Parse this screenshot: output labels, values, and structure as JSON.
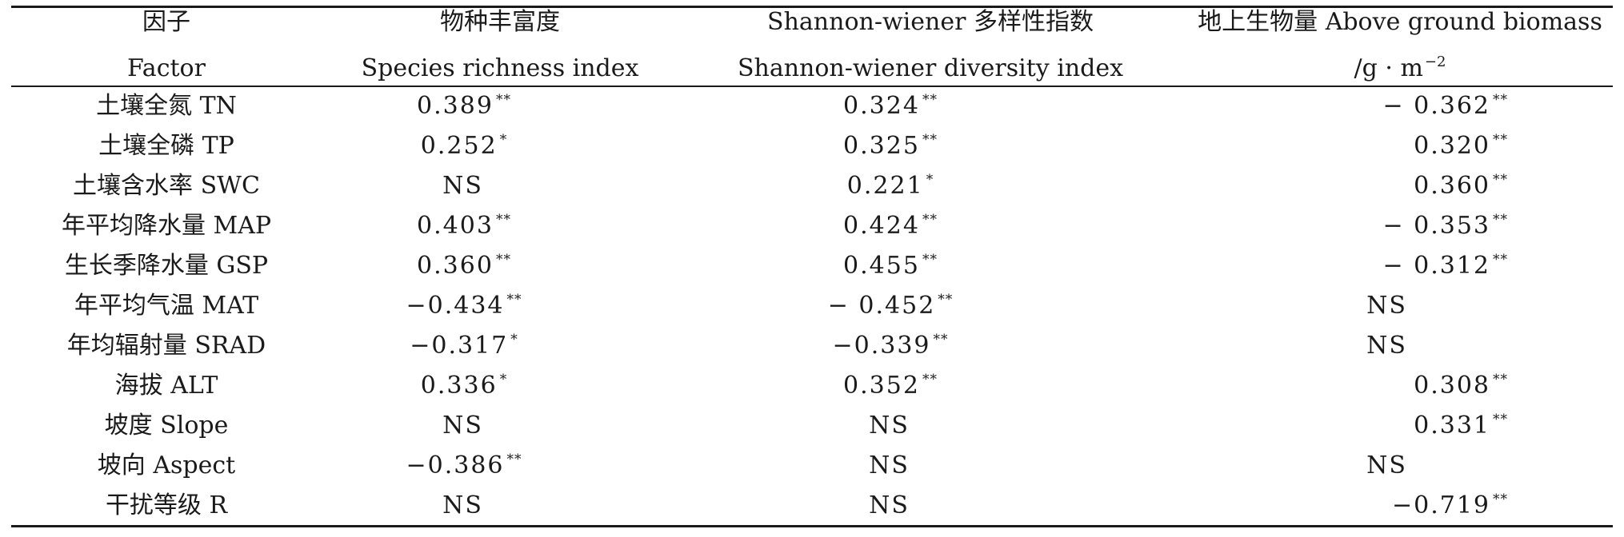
{
  "header": {
    "col1": {
      "line1": "因子",
      "line2": "Factor"
    },
    "col2": {
      "line1": "物种丰富度",
      "line2": "Species richness index"
    },
    "col3": {
      "line1": "Shannon-wiener 多样性指数",
      "line2": "Shannon-wiener diversity index"
    },
    "col4": {
      "line1": "地上生物量 Above ground biomass",
      "line2": "/g · m",
      "line2_sup": "−2"
    }
  },
  "rows": [
    {
      "factor": "土壤全氮 TN",
      "richness": {
        "v": "0.389",
        "s": "**"
      },
      "shannon": {
        "v": "0.324",
        "s": "**"
      },
      "biomass": {
        "v": "− 0.362",
        "s": "**"
      }
    },
    {
      "factor": "土壤全磷 TP",
      "richness": {
        "v": "0.252",
        "s": "*"
      },
      "shannon": {
        "v": "0.325",
        "s": "**"
      },
      "biomass": {
        "v": "0.320",
        "s": "**"
      }
    },
    {
      "factor": "土壤含水率 SWC",
      "richness": {
        "v": "NS",
        "s": ""
      },
      "shannon": {
        "v": "0.221",
        "s": "*"
      },
      "biomass": {
        "v": "0.360",
        "s": "**"
      }
    },
    {
      "factor": "年平均降水量 MAP",
      "richness": {
        "v": "0.403",
        "s": "**"
      },
      "shannon": {
        "v": "0.424",
        "s": "**"
      },
      "biomass": {
        "v": "− 0.353",
        "s": "**"
      }
    },
    {
      "factor": "生长季降水量 GSP",
      "richness": {
        "v": "0.360",
        "s": "**"
      },
      "shannon": {
        "v": "0.455",
        "s": "**"
      },
      "biomass": {
        "v": "− 0.312",
        "s": "**"
      }
    },
    {
      "factor": "年平均气温 MAT",
      "richness": {
        "v": "−0.434",
        "s": "**"
      },
      "shannon": {
        "v": "− 0.452",
        "s": "**"
      },
      "biomass": {
        "v": "NS",
        "s": ""
      }
    },
    {
      "factor": "年均辐射量 SRAD",
      "richness": {
        "v": "−0.317",
        "s": "*"
      },
      "shannon": {
        "v": "−0.339",
        "s": "**"
      },
      "biomass": {
        "v": "NS",
        "s": ""
      }
    },
    {
      "factor": "海拔 ALT",
      "richness": {
        "v": "0.336",
        "s": "*"
      },
      "shannon": {
        "v": "0.352",
        "s": "**"
      },
      "biomass": {
        "v": "0.308",
        "s": "**"
      }
    },
    {
      "factor": "坡度 Slope",
      "richness": {
        "v": "NS",
        "s": ""
      },
      "shannon": {
        "v": "NS",
        "s": ""
      },
      "biomass": {
        "v": "0.331",
        "s": "**"
      }
    },
    {
      "factor": "坡向 Aspect",
      "richness": {
        "v": "−0.386",
        "s": "**"
      },
      "shannon": {
        "v": "NS",
        "s": ""
      },
      "biomass": {
        "v": "NS",
        "s": ""
      }
    },
    {
      "factor": "干扰等级 R",
      "richness": {
        "v": "NS",
        "s": ""
      },
      "shannon": {
        "v": "NS",
        "s": ""
      },
      "biomass": {
        "v": "−0.719",
        "s": "**"
      }
    }
  ]
}
